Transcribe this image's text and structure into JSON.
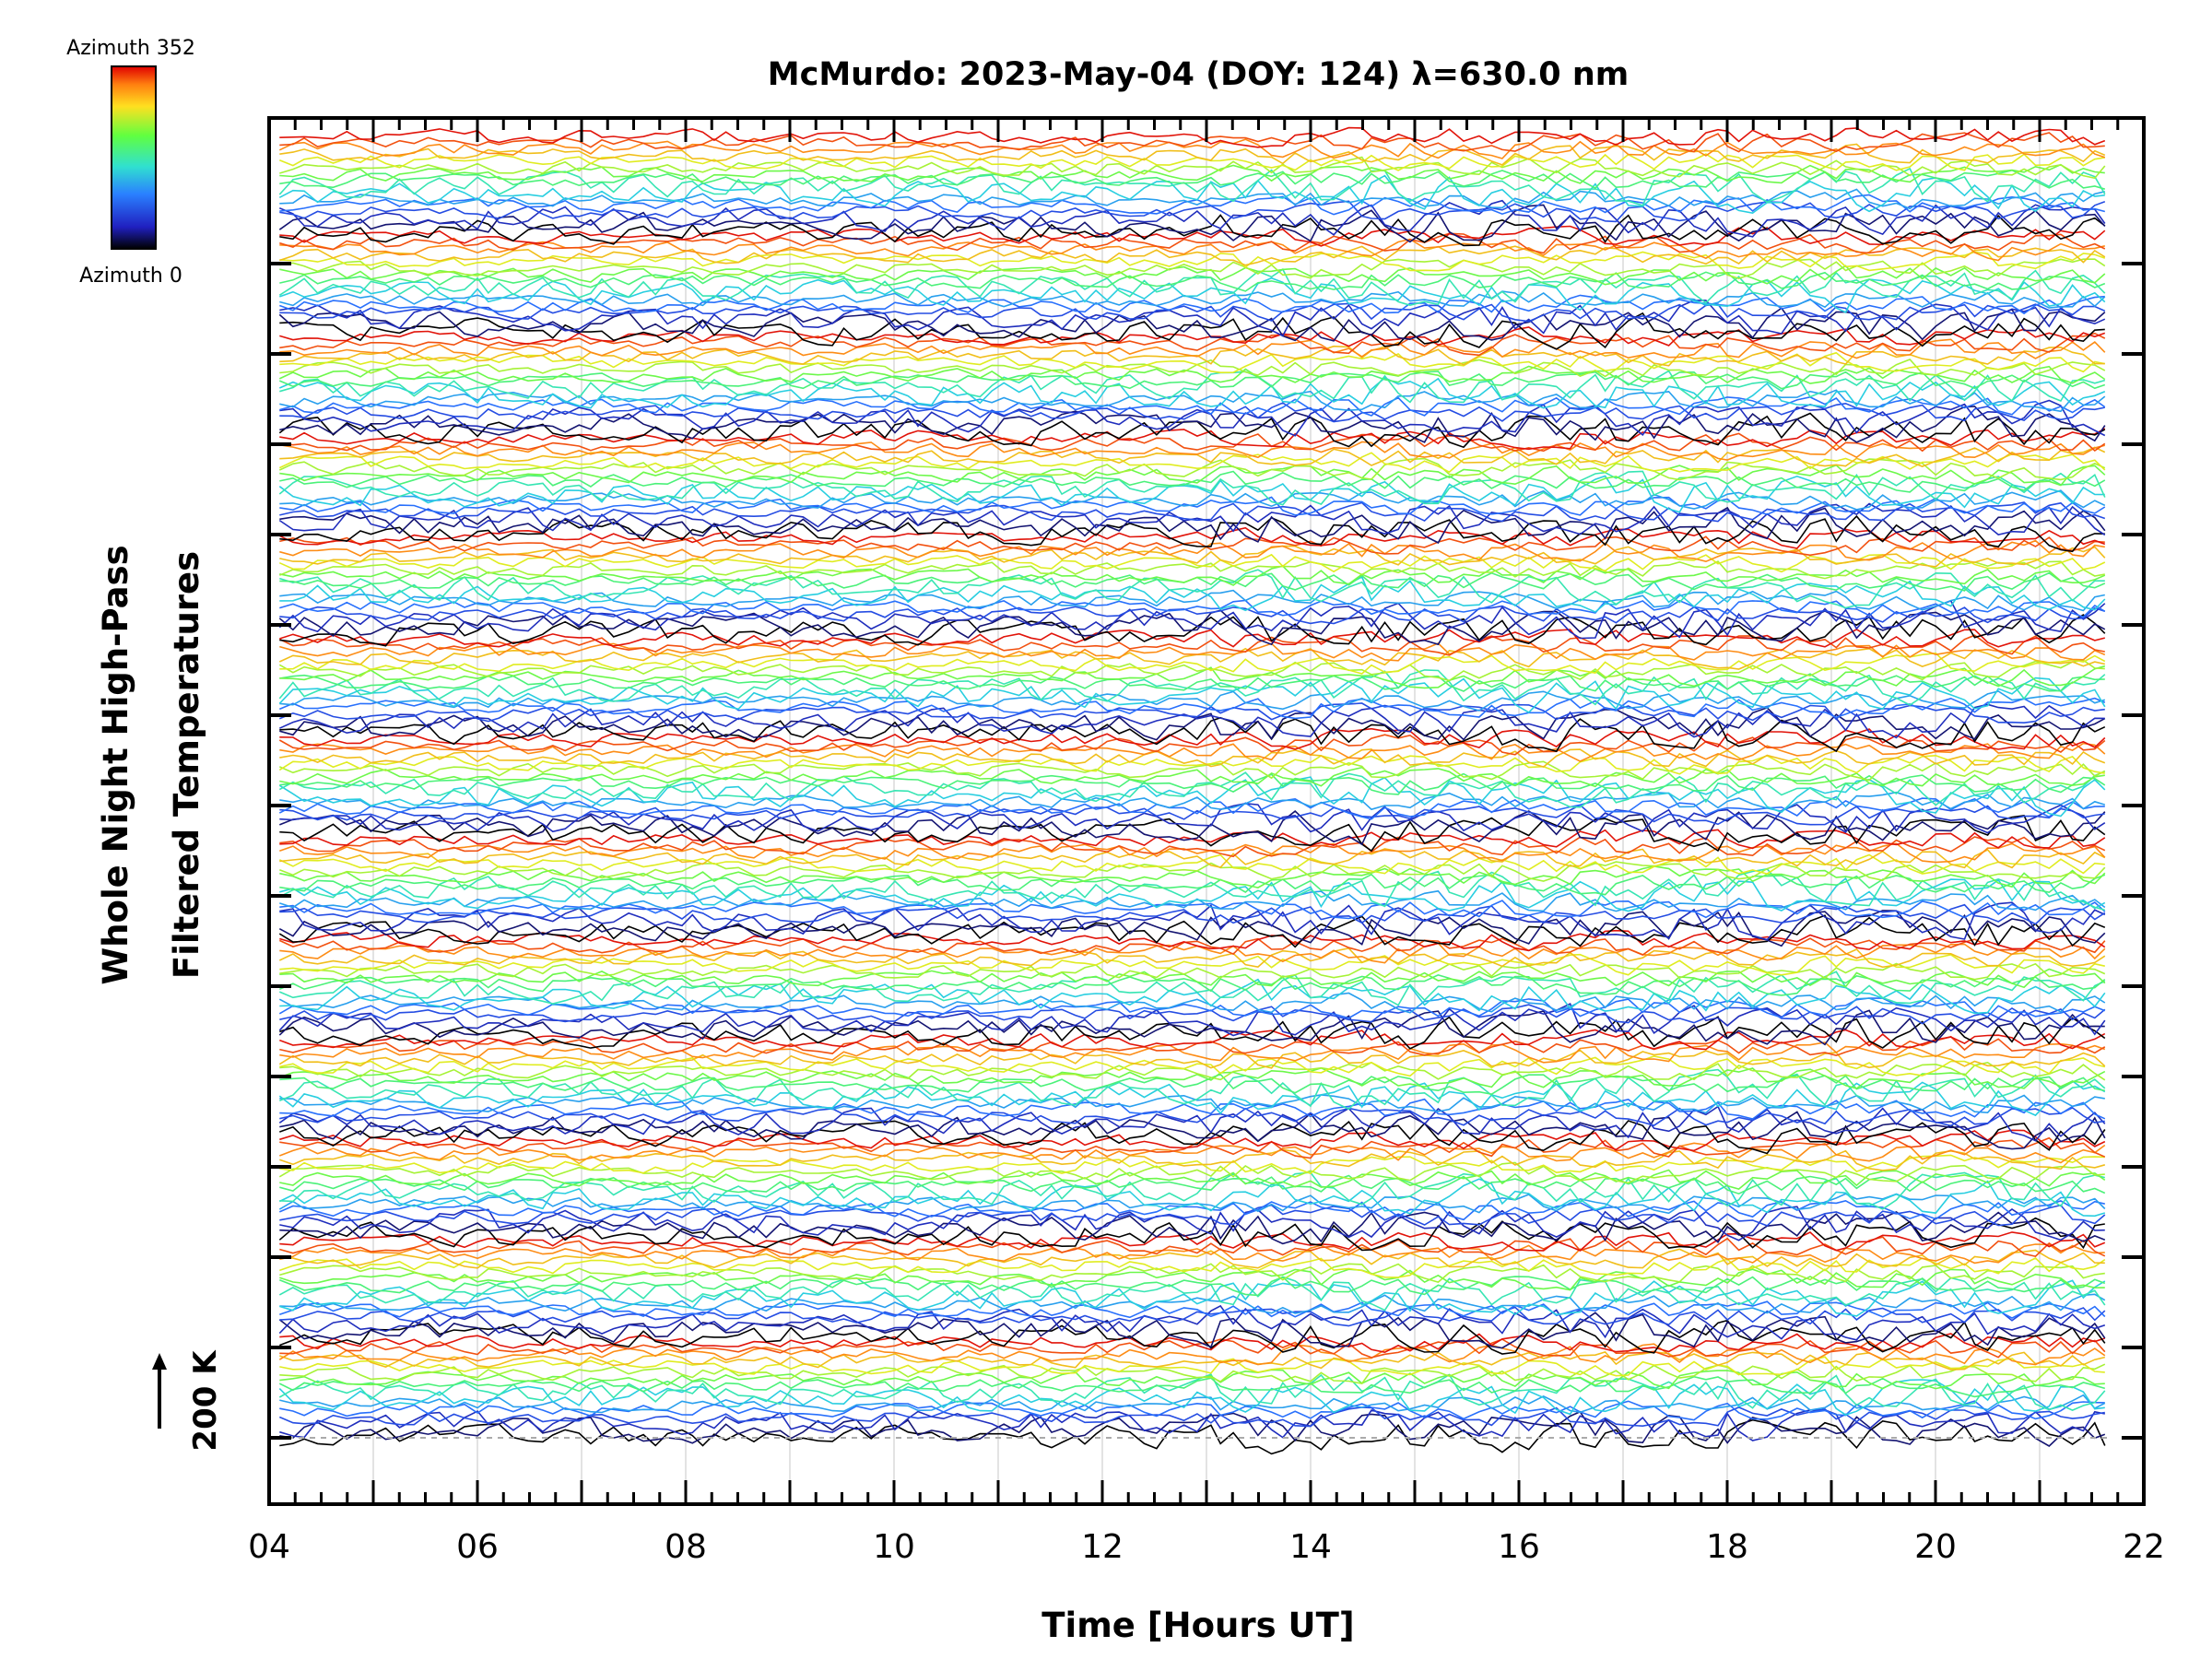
{
  "chart_data": {
    "type": "line",
    "title": "McMurdo: 2023-May-04 (DOY: 124) λ=630.0 nm",
    "xlabel": "Time [Hours UT]",
    "ylabel_lines": [
      "Whole Night High-Pass",
      "Filtered Temperatures"
    ],
    "xlim": [
      4,
      22
    ],
    "x_ticks": [
      "04",
      "06",
      "08",
      "10",
      "12",
      "14",
      "16",
      "18",
      "20",
      "22"
    ],
    "data_x_range": [
      4.1,
      21.7
    ],
    "scale_indicator": "200 K",
    "colorbar": {
      "top_label": "Azimuth 352",
      "bottom_label": "Azimuth 0",
      "azimuth_range": [
        0,
        352
      ]
    },
    "stack_groups": 13,
    "traces_per_group": 16,
    "colors": {
      "low": "#000000",
      "mid": "#3fe0d0",
      "high": "#e01010",
      "grid": "#d9d9d9",
      "baseline": "#aaaaaa"
    }
  }
}
